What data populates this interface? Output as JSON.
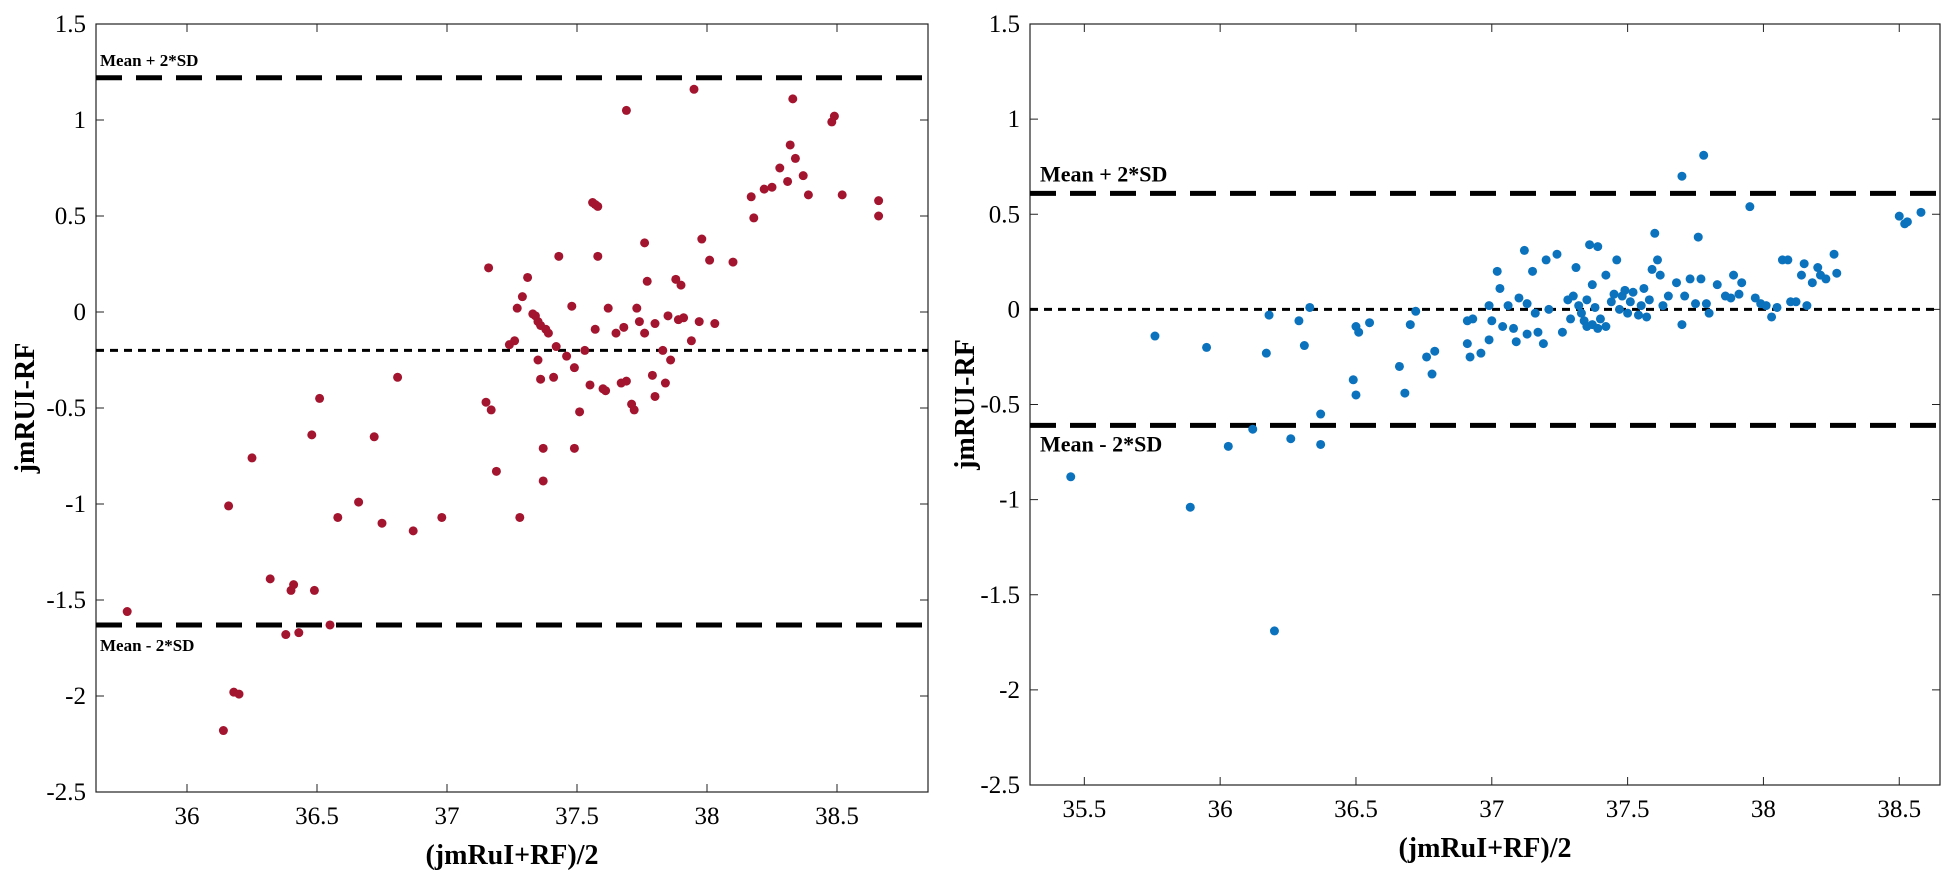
{
  "chart_data": [
    {
      "type": "scatter",
      "xlabel": "(jmRuI+RF)/2",
      "ylabel": "jmRUI-RF",
      "xlim": [
        35.65,
        38.85
      ],
      "ylim": [
        -2.5,
        1.5
      ],
      "xticks": [
        "36",
        "36.5",
        "37",
        "37.5",
        "38",
        "38.5"
      ],
      "yticks": [
        "1.5",
        "1",
        "0.5",
        "0",
        "-0.5",
        "-1",
        "-1.5",
        "-2",
        "-2.5"
      ],
      "marker_color": "#a3142e",
      "annotations": {
        "upper": "Mean + 2*SD",
        "lower": "Mean - 2*SD"
      },
      "lines": {
        "upper": 1.22,
        "mean": -0.2,
        "lower": -1.63
      },
      "points": [
        [
          35.77,
          -1.56
        ],
        [
          36.14,
          -2.18
        ],
        [
          36.16,
          -1.01
        ],
        [
          36.18,
          -1.98
        ],
        [
          36.2,
          -1.99
        ],
        [
          36.25,
          -0.76
        ],
        [
          36.32,
          -1.39
        ],
        [
          36.38,
          -1.68
        ],
        [
          36.4,
          -1.45
        ],
        [
          36.41,
          -1.42
        ],
        [
          36.43,
          -1.67
        ],
        [
          36.48,
          -0.64
        ],
        [
          36.49,
          -1.45
        ],
        [
          36.51,
          -0.45
        ],
        [
          36.55,
          -1.63
        ],
        [
          36.58,
          -1.07
        ],
        [
          36.66,
          -0.99
        ],
        [
          36.72,
          -0.65
        ],
        [
          36.75,
          -1.1
        ],
        [
          36.81,
          -0.34
        ],
        [
          36.87,
          -1.14
        ],
        [
          36.98,
          -1.07
        ],
        [
          37.15,
          -0.47
        ],
        [
          37.16,
          0.23
        ],
        [
          37.17,
          -0.51
        ],
        [
          37.19,
          -0.83
        ],
        [
          37.24,
          -0.17
        ],
        [
          37.26,
          -0.15
        ],
        [
          37.27,
          0.02
        ],
        [
          37.28,
          -1.07
        ],
        [
          37.29,
          0.08
        ],
        [
          37.31,
          0.18
        ],
        [
          37.33,
          -0.01
        ],
        [
          37.34,
          -0.02
        ],
        [
          37.35,
          -0.25
        ],
        [
          37.35,
          -0.05
        ],
        [
          37.36,
          -0.07
        ],
        [
          37.36,
          -0.35
        ],
        [
          37.37,
          -0.71
        ],
        [
          37.37,
          -0.88
        ],
        [
          37.38,
          -0.09
        ],
        [
          37.39,
          -0.11
        ],
        [
          37.41,
          -0.34
        ],
        [
          37.42,
          -0.18
        ],
        [
          37.43,
          0.29
        ],
        [
          37.46,
          -0.23
        ],
        [
          37.48,
          0.03
        ],
        [
          37.49,
          -0.29
        ],
        [
          37.49,
          -0.71
        ],
        [
          37.51,
          -0.52
        ],
        [
          37.53,
          -0.2
        ],
        [
          37.55,
          -0.38
        ],
        [
          37.56,
          0.57
        ],
        [
          37.57,
          0.56
        ],
        [
          37.57,
          -0.09
        ],
        [
          37.58,
          0.29
        ],
        [
          37.58,
          0.55
        ],
        [
          37.6,
          -0.4
        ],
        [
          37.61,
          -0.41
        ],
        [
          37.62,
          0.02
        ],
        [
          37.65,
          -0.11
        ],
        [
          37.67,
          -0.37
        ],
        [
          37.68,
          -0.08
        ],
        [
          37.69,
          1.05
        ],
        [
          37.69,
          -0.36
        ],
        [
          37.71,
          -0.48
        ],
        [
          37.72,
          -0.51
        ],
        [
          37.73,
          0.02
        ],
        [
          37.74,
          -0.05
        ],
        [
          37.76,
          0.36
        ],
        [
          37.76,
          -0.11
        ],
        [
          37.77,
          0.16
        ],
        [
          37.79,
          -0.33
        ],
        [
          37.8,
          -0.44
        ],
        [
          37.8,
          -0.06
        ],
        [
          37.83,
          -0.2
        ],
        [
          37.84,
          -0.37
        ],
        [
          37.85,
          -0.02
        ],
        [
          37.86,
          -0.25
        ],
        [
          37.88,
          0.17
        ],
        [
          37.89,
          -0.04
        ],
        [
          37.9,
          0.14
        ],
        [
          37.91,
          -0.03
        ],
        [
          37.94,
          -0.15
        ],
        [
          37.95,
          1.16
        ],
        [
          37.97,
          -0.05
        ],
        [
          37.98,
          0.38
        ],
        [
          38.01,
          0.27
        ],
        [
          38.03,
          -0.06
        ],
        [
          38.1,
          0.26
        ],
        [
          38.17,
          0.6
        ],
        [
          38.18,
          0.49
        ],
        [
          38.22,
          0.64
        ],
        [
          38.25,
          0.65
        ],
        [
          38.28,
          0.75
        ],
        [
          38.31,
          0.68
        ],
        [
          38.32,
          0.87
        ],
        [
          38.33,
          1.11
        ],
        [
          38.34,
          0.8
        ],
        [
          38.37,
          0.71
        ],
        [
          38.39,
          0.61
        ],
        [
          38.48,
          0.99
        ],
        [
          38.49,
          1.02
        ],
        [
          38.52,
          0.61
        ],
        [
          38.66,
          0.58
        ],
        [
          38.66,
          0.5
        ]
      ]
    },
    {
      "type": "scatter",
      "xlabel": "(jmRuI+RF)/2",
      "ylabel": "jmRUI-RF",
      "xlim": [
        35.3,
        38.65
      ],
      "ylim": [
        -2.5,
        1.5
      ],
      "xticks": [
        "35.5",
        "36",
        "36.5",
        "37",
        "37.5",
        "38",
        "38.5"
      ],
      "yticks": [
        "1.5",
        "1",
        "0.5",
        "0",
        "-0.5",
        "-1",
        "-1.5",
        "-2",
        "-2.5"
      ],
      "marker_color": "#0b72bd",
      "annotations": {
        "upper": "Mean + 2*SD",
        "lower": "Mean - 2*SD"
      },
      "lines": {
        "upper": 0.61,
        "mean": 0.0,
        "lower": -0.61
      },
      "points": [
        [
          35.45,
          -0.88
        ],
        [
          35.76,
          -0.14
        ],
        [
          35.89,
          -1.04
        ],
        [
          35.95,
          -0.2
        ],
        [
          36.03,
          -0.72
        ],
        [
          36.12,
          -0.63
        ],
        [
          36.17,
          -0.23
        ],
        [
          36.18,
          -0.03
        ],
        [
          36.2,
          -1.69
        ],
        [
          36.26,
          -0.68
        ],
        [
          36.29,
          -0.06
        ],
        [
          36.31,
          -0.19
        ],
        [
          36.33,
          0.01
        ],
        [
          36.37,
          -0.55
        ],
        [
          36.37,
          -0.71
        ],
        [
          36.49,
          -0.37
        ],
        [
          36.5,
          -0.45
        ],
        [
          36.5,
          -0.09
        ],
        [
          36.51,
          -0.12
        ],
        [
          36.55,
          -0.07
        ],
        [
          36.66,
          -0.3
        ],
        [
          36.68,
          -0.44
        ],
        [
          36.7,
          -0.08
        ],
        [
          36.72,
          -0.01
        ],
        [
          36.76,
          -0.25
        ],
        [
          36.78,
          -0.34
        ],
        [
          36.79,
          -0.22
        ],
        [
          36.91,
          -0.06
        ],
        [
          36.91,
          -0.18
        ],
        [
          36.92,
          -0.25
        ],
        [
          36.93,
          -0.05
        ],
        [
          36.96,
          -0.23
        ],
        [
          36.99,
          0.02
        ],
        [
          36.99,
          -0.16
        ],
        [
          37.0,
          -0.06
        ],
        [
          37.02,
          0.2
        ],
        [
          37.03,
          0.11
        ],
        [
          37.04,
          -0.09
        ],
        [
          37.06,
          0.02
        ],
        [
          37.08,
          -0.1
        ],
        [
          37.09,
          -0.17
        ],
        [
          37.1,
          0.06
        ],
        [
          37.12,
          0.31
        ],
        [
          37.13,
          0.03
        ],
        [
          37.13,
          -0.13
        ],
        [
          37.15,
          0.2
        ],
        [
          37.16,
          -0.02
        ],
        [
          37.17,
          -0.12
        ],
        [
          37.19,
          -0.18
        ],
        [
          37.2,
          0.26
        ],
        [
          37.21,
          0.0
        ],
        [
          37.24,
          0.29
        ],
        [
          37.26,
          -0.12
        ],
        [
          37.28,
          0.05
        ],
        [
          37.29,
          -0.05
        ],
        [
          37.3,
          0.07
        ],
        [
          37.31,
          0.22
        ],
        [
          37.32,
          0.02
        ],
        [
          37.33,
          -0.02
        ],
        [
          37.34,
          -0.06
        ],
        [
          37.35,
          0.05
        ],
        [
          37.35,
          -0.09
        ],
        [
          37.36,
          0.34
        ],
        [
          37.37,
          0.13
        ],
        [
          37.37,
          -0.08
        ],
        [
          37.38,
          0.01
        ],
        [
          37.39,
          0.33
        ],
        [
          37.39,
          -0.1
        ],
        [
          37.4,
          -0.05
        ],
        [
          37.42,
          0.18
        ],
        [
          37.42,
          -0.09
        ],
        [
          37.44,
          0.04
        ],
        [
          37.45,
          0.08
        ],
        [
          37.46,
          0.26
        ],
        [
          37.47,
          0.0
        ],
        [
          37.48,
          0.07
        ],
        [
          37.49,
          0.1
        ],
        [
          37.5,
          -0.02
        ],
        [
          37.51,
          0.04
        ],
        [
          37.52,
          0.09
        ],
        [
          37.54,
          -0.03
        ],
        [
          37.55,
          0.02
        ],
        [
          37.56,
          0.11
        ],
        [
          37.57,
          -0.04
        ],
        [
          37.58,
          0.05
        ],
        [
          37.59,
          0.21
        ],
        [
          37.6,
          0.4
        ],
        [
          37.61,
          0.26
        ],
        [
          37.62,
          0.18
        ],
        [
          37.63,
          0.02
        ],
        [
          37.65,
          0.07
        ],
        [
          37.68,
          0.14
        ],
        [
          37.7,
          0.7
        ],
        [
          37.7,
          -0.08
        ],
        [
          37.71,
          0.07
        ],
        [
          37.73,
          0.16
        ],
        [
          37.75,
          0.03
        ],
        [
          37.76,
          0.38
        ],
        [
          37.77,
          0.16
        ],
        [
          37.78,
          0.81
        ],
        [
          37.79,
          0.03
        ],
        [
          37.8,
          -0.02
        ],
        [
          37.83,
          0.13
        ],
        [
          37.86,
          0.07
        ],
        [
          37.88,
          0.06
        ],
        [
          37.89,
          0.18
        ],
        [
          37.91,
          0.08
        ],
        [
          37.92,
          0.14
        ],
        [
          37.95,
          0.54
        ],
        [
          37.97,
          0.06
        ],
        [
          37.99,
          0.03
        ],
        [
          38.01,
          0.02
        ],
        [
          38.03,
          -0.04
        ],
        [
          38.05,
          0.01
        ],
        [
          38.07,
          0.26
        ],
        [
          38.09,
          0.26
        ],
        [
          38.1,
          0.04
        ],
        [
          38.12,
          0.04
        ],
        [
          38.14,
          0.18
        ],
        [
          38.15,
          0.24
        ],
        [
          38.16,
          0.02
        ],
        [
          38.18,
          0.14
        ],
        [
          38.2,
          0.22
        ],
        [
          38.21,
          0.18
        ],
        [
          38.23,
          0.16
        ],
        [
          38.26,
          0.29
        ],
        [
          38.27,
          0.19
        ],
        [
          38.5,
          0.49
        ],
        [
          38.52,
          0.45
        ],
        [
          38.53,
          0.46
        ],
        [
          38.58,
          0.51
        ]
      ]
    }
  ]
}
